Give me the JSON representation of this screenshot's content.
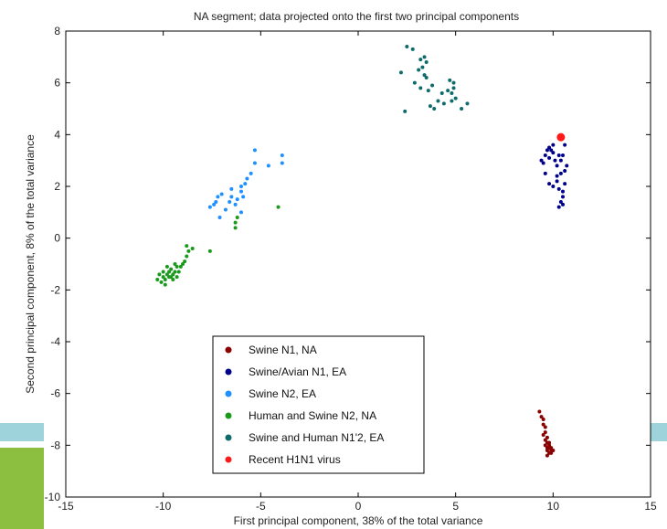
{
  "chart_data": {
    "type": "scatter",
    "title": "NA segment; data projected onto the first two principal components",
    "xlabel": "First principal component, 38% of the total variance",
    "ylabel": "Second principal component, 8% of the total variance",
    "xlim": [
      -15,
      15
    ],
    "ylim": [
      -10,
      8
    ],
    "xticks": [
      -15,
      -10,
      -5,
      0,
      5,
      10,
      15
    ],
    "yticks": [
      -10,
      -8,
      -6,
      -4,
      -2,
      0,
      2,
      4,
      6,
      8
    ],
    "grid": false,
    "legend_position": "bottom-center",
    "series": [
      {
        "name": "Swine N1, NA",
        "color": "#8b0000",
        "points": [
          [
            9.3,
            -6.7
          ],
          [
            9.4,
            -6.9
          ],
          [
            9.5,
            -7.0
          ],
          [
            9.5,
            -7.2
          ],
          [
            9.6,
            -7.3
          ],
          [
            9.6,
            -7.5
          ],
          [
            9.5,
            -7.6
          ],
          [
            9.7,
            -7.7
          ],
          [
            9.6,
            -7.8
          ],
          [
            9.7,
            -7.9
          ],
          [
            9.8,
            -7.9
          ],
          [
            9.6,
            -8.0
          ],
          [
            9.7,
            -8.1
          ],
          [
            9.8,
            -8.1
          ],
          [
            9.9,
            -8.1
          ],
          [
            9.7,
            -8.2
          ],
          [
            9.8,
            -8.3
          ],
          [
            9.9,
            -8.2
          ],
          [
            10.0,
            -8.2
          ],
          [
            9.8,
            -8.0
          ],
          [
            9.7,
            -8.4
          ],
          [
            9.9,
            -8.3
          ]
        ]
      },
      {
        "name": "Swine/Avian N1, EA",
        "color": "#00008b",
        "points": [
          [
            9.4,
            3.0
          ],
          [
            9.5,
            2.9
          ],
          [
            9.6,
            3.2
          ],
          [
            9.7,
            3.4
          ],
          [
            9.8,
            3.5
          ],
          [
            9.8,
            3.1
          ],
          [
            9.9,
            3.4
          ],
          [
            10.0,
            3.6
          ],
          [
            10.0,
            3.3
          ],
          [
            10.1,
            3.0
          ],
          [
            10.2,
            2.8
          ],
          [
            10.3,
            3.2
          ],
          [
            10.4,
            3.0
          ],
          [
            10.5,
            3.2
          ],
          [
            10.6,
            3.6
          ],
          [
            10.4,
            2.5
          ],
          [
            10.2,
            2.4
          ],
          [
            10.6,
            2.6
          ],
          [
            10.7,
            2.8
          ],
          [
            9.8,
            2.1
          ],
          [
            10.0,
            2.0
          ],
          [
            10.3,
            1.9
          ],
          [
            10.5,
            1.8
          ],
          [
            10.5,
            1.6
          ],
          [
            10.4,
            1.4
          ],
          [
            10.5,
            1.3
          ],
          [
            10.3,
            1.2
          ],
          [
            9.6,
            2.5
          ],
          [
            10.6,
            2.1
          ],
          [
            10.2,
            2.2
          ]
        ]
      },
      {
        "name": "Swine N2, EA",
        "color": "#1e90ff",
        "points": [
          [
            -5.3,
            3.4
          ],
          [
            -3.9,
            3.2
          ],
          [
            -3.9,
            2.9
          ],
          [
            -4.6,
            2.8
          ],
          [
            -5.3,
            2.9
          ],
          [
            -5.7,
            2.3
          ],
          [
            -5.8,
            2.1
          ],
          [
            -6.0,
            2.0
          ],
          [
            -6.5,
            1.9
          ],
          [
            -7.0,
            1.7
          ],
          [
            -7.2,
            1.6
          ],
          [
            -7.4,
            1.3
          ],
          [
            -7.6,
            1.2
          ],
          [
            -6.2,
            1.5
          ],
          [
            -6.5,
            1.6
          ],
          [
            -6.0,
            1.8
          ],
          [
            -6.8,
            1.1
          ],
          [
            -6.3,
            1.3
          ],
          [
            -5.5,
            2.5
          ],
          [
            -5.9,
            1.6
          ],
          [
            -6.0,
            1.0
          ],
          [
            -6.6,
            1.4
          ],
          [
            -7.1,
            0.8
          ],
          [
            -7.3,
            1.4
          ]
        ]
      },
      {
        "name": "Human and Swine N2, NA",
        "color": "#1a9a1a",
        "points": [
          [
            -10.3,
            -1.6
          ],
          [
            -10.1,
            -1.7
          ],
          [
            -10.0,
            -1.5
          ],
          [
            -9.9,
            -1.6
          ],
          [
            -9.8,
            -1.4
          ],
          [
            -9.7,
            -1.3
          ],
          [
            -9.7,
            -1.5
          ],
          [
            -9.6,
            -1.2
          ],
          [
            -9.5,
            -1.4
          ],
          [
            -9.5,
            -1.6
          ],
          [
            -9.4,
            -1.3
          ],
          [
            -9.3,
            -1.1
          ],
          [
            -9.2,
            -1.3
          ],
          [
            -9.1,
            -1.1
          ],
          [
            -9.0,
            -1.0
          ],
          [
            -8.9,
            -0.9
          ],
          [
            -8.8,
            -0.7
          ],
          [
            -8.7,
            -0.5
          ],
          [
            -8.8,
            -0.3
          ],
          [
            -8.5,
            -0.4
          ],
          [
            -9.8,
            -1.1
          ],
          [
            -10.0,
            -1.3
          ],
          [
            -9.9,
            -1.8
          ],
          [
            -9.6,
            -1.5
          ],
          [
            -9.4,
            -1.0
          ],
          [
            -7.6,
            -0.5
          ],
          [
            -6.3,
            0.4
          ],
          [
            -6.3,
            0.6
          ],
          [
            -6.2,
            0.8
          ],
          [
            -4.1,
            1.2
          ],
          [
            -10.2,
            -1.4
          ],
          [
            -9.3,
            -1.5
          ]
        ]
      },
      {
        "name": "Swine and Human N1'2, EA",
        "color": "#0e6b6b",
        "points": [
          [
            2.5,
            7.4
          ],
          [
            2.8,
            7.3
          ],
          [
            3.2,
            6.9
          ],
          [
            3.4,
            7.0
          ],
          [
            3.5,
            6.8
          ],
          [
            3.3,
            6.6
          ],
          [
            3.1,
            6.5
          ],
          [
            2.2,
            6.4
          ],
          [
            3.4,
            6.3
          ],
          [
            3.5,
            6.2
          ],
          [
            2.9,
            6.0
          ],
          [
            3.8,
            5.9
          ],
          [
            3.6,
            5.7
          ],
          [
            4.3,
            5.6
          ],
          [
            4.6,
            5.7
          ],
          [
            4.8,
            5.6
          ],
          [
            4.9,
            5.8
          ],
          [
            5.0,
            5.4
          ],
          [
            4.8,
            5.3
          ],
          [
            4.1,
            5.3
          ],
          [
            4.4,
            5.2
          ],
          [
            5.6,
            5.2
          ],
          [
            5.3,
            5.0
          ],
          [
            3.7,
            5.1
          ],
          [
            3.9,
            5.0
          ],
          [
            2.4,
            4.9
          ],
          [
            4.7,
            6.1
          ],
          [
            4.9,
            6.0
          ],
          [
            3.2,
            5.8
          ]
        ]
      },
      {
        "name": "Recent H1N1 virus",
        "color": "#ff1a1a",
        "large": true,
        "points": [
          [
            10.4,
            3.9
          ]
        ]
      }
    ]
  }
}
